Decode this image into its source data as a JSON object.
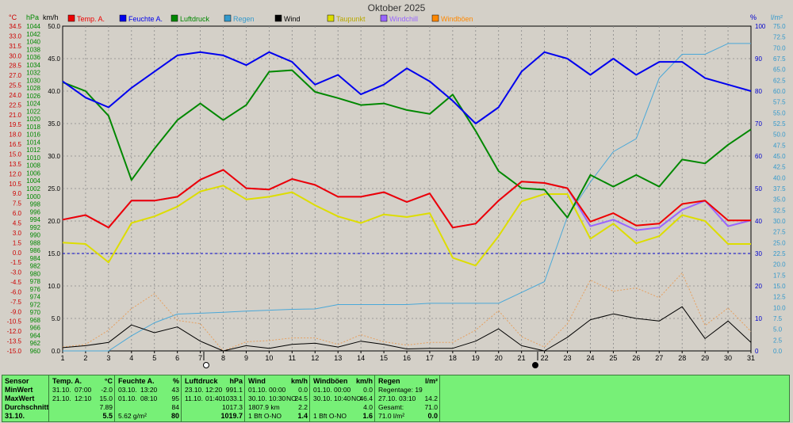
{
  "title": "Oktober 2025",
  "axis_units": {
    "celsius": "°C",
    "hpa": "hPa",
    "kmh": "km/h",
    "percent": "%",
    "rain": "l/m²"
  },
  "legend": [
    {
      "name": "Temp. A.",
      "color": "#ee0000"
    },
    {
      "name": "Feuchte A.",
      "color": "#0000ee"
    },
    {
      "name": "Luftdruck",
      "color": "#008800"
    },
    {
      "name": "Regen",
      "color": "#3399cc"
    },
    {
      "name": "Wind",
      "color": "#000000"
    },
    {
      "name": "Taupunkt",
      "color": "#dddd00"
    },
    {
      "name": "Windchill",
      "color": "#9966ff"
    },
    {
      "name": "Windböen",
      "color": "#ff8800"
    }
  ],
  "chart_data": {
    "type": "line",
    "title": "Oktober 2025",
    "x": [
      1,
      2,
      3,
      4,
      5,
      6,
      7,
      8,
      9,
      10,
      11,
      12,
      13,
      14,
      15,
      16,
      17,
      18,
      19,
      20,
      21,
      22,
      23,
      24,
      25,
      26,
      27,
      28,
      29,
      30,
      31
    ],
    "axes": {
      "celsius": {
        "range": [
          -15.0,
          34.5
        ],
        "ticks": [
          "34.5",
          "33.0",
          "31.5",
          "30.0",
          "28.5",
          "27.0",
          "25.5",
          "24.0",
          "22.5",
          "21.0",
          "19.5",
          "18.0",
          "16.5",
          "15.0",
          "13.5",
          "12.0",
          "10.5",
          "9.0",
          "7.5",
          "6.0",
          "4.5",
          "3.0",
          "1.5",
          "0.0",
          "-1.5",
          "-3.0",
          "-4.5",
          "-6.0",
          "-7.5",
          "-9.0",
          "-10.5",
          "-12.0",
          "-13.5",
          "-15.0"
        ]
      },
      "hpa": {
        "range": [
          960,
          1044
        ],
        "ticks": [
          "1044",
          "1042",
          "1040",
          "1038",
          "1036",
          "1034",
          "1032",
          "1030",
          "1028",
          "1026",
          "1024",
          "1022",
          "1020",
          "1018",
          "1016",
          "1014",
          "1012",
          "1010",
          "1008",
          "1006",
          "1004",
          "1002",
          "1000",
          "998",
          "996",
          "994",
          "992",
          "990",
          "988",
          "986",
          "984",
          "982",
          "980",
          "978",
          "976",
          "974",
          "972",
          "970",
          "968",
          "966",
          "964",
          "962",
          "960"
        ]
      },
      "kmh": {
        "range": [
          0.0,
          50.0
        ],
        "ticks": [
          "50.0",
          "45.0",
          "40.0",
          "35.0",
          "30.0",
          "25.0",
          "20.0",
          "15.0",
          "10.0",
          "5.0",
          "0.0"
        ]
      },
      "percent": {
        "range": [
          0,
          100
        ],
        "ticks": [
          "100",
          "90",
          "80",
          "70",
          "60",
          "50",
          "40",
          "30",
          "20",
          "10",
          "0"
        ]
      },
      "rain": {
        "range": [
          0.0,
          75.0
        ],
        "ticks": [
          "75.0",
          "72.5",
          "70.0",
          "67.5",
          "65.0",
          "62.5",
          "60.0",
          "57.5",
          "55.0",
          "52.5",
          "50.0",
          "47.5",
          "45.0",
          "42.5",
          "40.0",
          "37.5",
          "35.0",
          "32.5",
          "30.0",
          "27.5",
          "25.0",
          "22.5",
          "20.0",
          "17.5",
          "15.0",
          "12.5",
          "10.0",
          "7.5",
          "5.0",
          "2.5",
          "0.0"
        ]
      }
    },
    "series": [
      {
        "name": "Temp. A.",
        "axis": "celsius",
        "values": [
          5.0,
          5.7,
          3.8,
          7.9,
          7.9,
          8.5,
          11.1,
          12.6,
          9.8,
          9.6,
          11.2,
          10.3,
          8.5,
          8.5,
          9.2,
          7.7,
          9.0,
          3.8,
          4.4,
          7.9,
          10.8,
          10.6,
          9.8,
          4.7,
          6.0,
          4.1,
          4.4,
          7.4,
          7.9,
          4.9,
          4.9
        ]
      },
      {
        "name": "Feuchte A.",
        "axis": "percent",
        "values": [
          83,
          78,
          75,
          81,
          86,
          91,
          92,
          91,
          88,
          92,
          89,
          82,
          85,
          79,
          82,
          87,
          83,
          77,
          70,
          75,
          86,
          92,
          90,
          85,
          90,
          85,
          89,
          89,
          84,
          82,
          80
        ]
      },
      {
        "name": "Luftdruck",
        "axis": "hpa",
        "values": [
          1029.5,
          1027.2,
          1020.8,
          1004.2,
          1012.3,
          1019.7,
          1024.0,
          1019.7,
          1023.6,
          1032.2,
          1032.6,
          1027.0,
          1025.4,
          1023.6,
          1024.0,
          1022.3,
          1021.3,
          1026.3,
          1016.9,
          1006.5,
          1002.1,
          1001.7,
          994.5,
          1005.5,
          1002.5,
          1005.5,
          1002.5,
          1009.5,
          1008.5,
          1013.3,
          1017.3
        ]
      },
      {
        "name": "Regen",
        "axis": "rain",
        "values": [
          0,
          0,
          0,
          3.5,
          6.5,
          8.5,
          8.7,
          8.9,
          9.2,
          9.4,
          9.6,
          9.7,
          10.7,
          10.7,
          10.7,
          10.7,
          11.0,
          11.0,
          11.0,
          11.0,
          13.5,
          16.0,
          31.0,
          39.0,
          46.0,
          49.0,
          63.0,
          68.5,
          68.5,
          71.0,
          71.0
        ]
      },
      {
        "name": "Wind",
        "axis": "kmh",
        "values": [
          0.5,
          0.8,
          1.3,
          4.0,
          2.8,
          3.7,
          1.5,
          0.0,
          0.8,
          0.4,
          1.0,
          1.2,
          0.6,
          1.5,
          1.0,
          0.3,
          0.4,
          0.4,
          1.5,
          3.4,
          0.8,
          0.0,
          2.1,
          4.8,
          5.7,
          5.0,
          4.6,
          6.8,
          1.9,
          4.6,
          1.3
        ]
      },
      {
        "name": "Taupunkt",
        "axis": "celsius",
        "values": [
          1.5,
          1.3,
          -1.5,
          4.5,
          5.5,
          7.0,
          9.3,
          10.2,
          8.1,
          8.5,
          9.2,
          7.2,
          5.5,
          4.5,
          5.8,
          5.4,
          6.0,
          -0.8,
          -2.0,
          2.5,
          7.8,
          8.9,
          8.9,
          2.1,
          4.4,
          1.4,
          2.5,
          5.7,
          4.8,
          1.3,
          1.3
        ]
      },
      {
        "name": "Windchill",
        "axis": "celsius",
        "values": [
          5.0,
          5.7,
          3.8,
          7.9,
          7.9,
          8.5,
          11.1,
          12.6,
          9.8,
          9.6,
          11.2,
          10.3,
          8.5,
          8.5,
          9.2,
          7.7,
          9.0,
          3.8,
          4.4,
          7.9,
          10.8,
          10.6,
          9.8,
          4.0,
          5.0,
          3.4,
          3.8,
          6.5,
          7.9,
          4.0,
          4.9
        ]
      },
      {
        "name": "Windböen",
        "axis": "kmh",
        "values": [
          0.6,
          1.0,
          3.2,
          6.5,
          8.8,
          4.7,
          4.2,
          0.0,
          1.4,
          1.6,
          2.0,
          2.0,
          1.0,
          2.5,
          1.4,
          0.9,
          1.3,
          1.3,
          3.2,
          6.2,
          2.2,
          0.6,
          4.2,
          10.9,
          9.2,
          9.7,
          8.2,
          12.0,
          3.9,
          6.6,
          3.0
        ]
      }
    ]
  },
  "stats": {
    "sensor": {
      "header": "Sensor",
      "rows": [
        "MinWert",
        "MaxWert",
        "Durchschnitt",
        "31.10."
      ]
    },
    "temp": {
      "header": "Temp. A.",
      "unit": "°C",
      "min_date": "31.10.",
      "min_time": "07:00",
      "min_val": "-2.0",
      "max_date": "21.10.",
      "max_time": "12:10",
      "max_val": "15.0",
      "avg": "7.89",
      "today": "5.5"
    },
    "feuchte": {
      "header": "Feuchte A.",
      "unit": "%",
      "min_date": "03.10.",
      "min_time": "13:20",
      "min_val": "43",
      "max_date": "01.10.",
      "max_time": "08:10",
      "max_val": "95",
      "avg": "84",
      "today_extra": "5.62 g/m²",
      "today": "80"
    },
    "luftdruck": {
      "header": "Luftdruck",
      "unit": "hPa",
      "min_date": "23.10.",
      "min_time": "12:20",
      "min_val": "991.1",
      "max_date": "11.10.",
      "max_time": "01:40",
      "max_val": "1033.1",
      "avg": "1017.3",
      "today": "1019.7"
    },
    "wind": {
      "header": "Wind",
      "unit": "km/h",
      "min_date": "01.10.",
      "min_time": "00:00",
      "min_val": "0.0",
      "max_date": "30.10.",
      "max_time": "10:30",
      "max_dir": "NO",
      "max_val": "24.5",
      "avg_extra": "1807.9 km",
      "avg": "2.2",
      "today_extra": "1 Bft O-NO",
      "today": "1.4"
    },
    "boeen": {
      "header": "Windböen",
      "unit": "km/h",
      "min_date": "01.10.",
      "min_time": "00:00",
      "min_val": "0.0",
      "max_date": "30.10.",
      "max_time": "10:40",
      "max_dir": "NO",
      "max_val": "46.4",
      "avg": "4.0",
      "today_extra": "1 Bft O-NO",
      "today": "1.6"
    },
    "regen": {
      "header": "Regen",
      "unit": "l/m²",
      "row1": "Regentage: 19",
      "max_date": "27.10.",
      "max_time": "03:10",
      "max_val": "14.2",
      "gesamt_label": "Gesamt:",
      "gesamt_val": "71.0",
      "today_extra": "71.0 l/m²",
      "today": "0.0"
    }
  }
}
